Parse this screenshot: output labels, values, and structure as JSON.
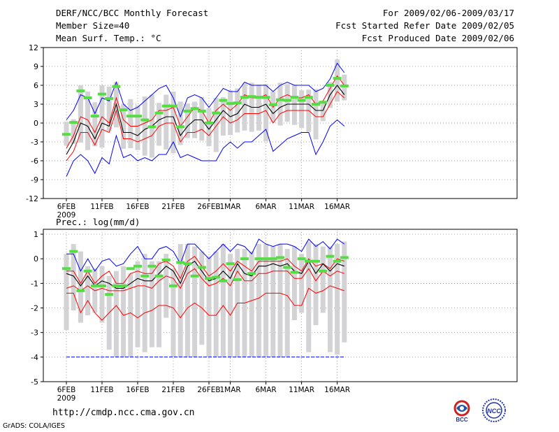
{
  "header": {
    "title": "DERF/NCC/BCC Monthly Forecast",
    "member_size": "Member Size=40",
    "variable": "Mean Surf. Temp.: °C",
    "period": "For 2009/02/06-2009/03/17",
    "started": "Fcst Started Refer Date 2009/02/05",
    "produced": "Fcst Produced Date 2009/02/06"
  },
  "footer": {
    "url": "http://cmdp.ncc.cma.gov.cn",
    "credit": "GrADS: COLA/IGES",
    "logo_left": "BCC",
    "logo_right": "NCC"
  },
  "colors": {
    "max_min": "#0000ff",
    "band": "#ff0000",
    "mean": "#000000",
    "bar": "#d3d3d6",
    "obs": "#55dd44",
    "grid": "#888888"
  },
  "chart_data": [
    {
      "type": "line",
      "title": "Mean Surf. Temp.: °C",
      "ylabel": "Mean Surf. Temp.: °C",
      "xlabel": "",
      "ylim": [
        -12,
        12
      ],
      "yticks": [
        -12,
        -9,
        -6,
        -3,
        0,
        3,
        6,
        9,
        12
      ],
      "x_tick_labels": [
        {
          "day": 0,
          "label": "6FEB"
        },
        {
          "day": 5,
          "label": "11FEB"
        },
        {
          "day": 10,
          "label": "16FEB"
        },
        {
          "day": 15,
          "label": "21FEB"
        },
        {
          "day": 20,
          "label": "26FEB"
        },
        {
          "day": 23,
          "label": "1MAR"
        },
        {
          "day": 28,
          "label": "6MAR"
        },
        {
          "day": 33,
          "label": "11MAR"
        },
        {
          "day": 38,
          "label": "16MAR"
        }
      ],
      "year_label": "2009",
      "days": 40,
      "series": [
        {
          "name": "max",
          "values": [
            0.5,
            2,
            4.5,
            4,
            1.5,
            4,
            3.5,
            6.5,
            3,
            2,
            2.5,
            3.5,
            4.5,
            5.5,
            6,
            4,
            1,
            4,
            4.5,
            4,
            2.5,
            4,
            5.5,
            5,
            5,
            6.5,
            6,
            6,
            6,
            5,
            6,
            6.5,
            6,
            6,
            6,
            5,
            5.5,
            7,
            9.5,
            8
          ]
        },
        {
          "name": "upper",
          "values": [
            -4,
            -2,
            1,
            0.5,
            -1.5,
            1,
            0,
            4,
            0.5,
            -0.5,
            -0.5,
            0,
            0.5,
            2,
            2,
            2.5,
            -0.5,
            1,
            2.5,
            2,
            0,
            2,
            3,
            2,
            3,
            4.5,
            4,
            4,
            4.5,
            2.5,
            4,
            4.5,
            4,
            4,
            4.5,
            3,
            3.5,
            5.5,
            7.5,
            6
          ]
        },
        {
          "name": "mean",
          "values": [
            -5,
            -3,
            0,
            -0.5,
            -2.5,
            0,
            -0.5,
            3,
            -1.5,
            -1.5,
            -2,
            -1,
            -0.5,
            0.5,
            1,
            1,
            -2,
            -0.5,
            0.5,
            0.5,
            -1,
            0.5,
            2,
            1,
            1.5,
            3,
            2.5,
            2.5,
            3,
            1.5,
            2.5,
            3,
            3,
            3,
            3,
            2,
            2,
            4.5,
            6,
            4.5
          ]
        },
        {
          "name": "lower",
          "values": [
            -6,
            -4.5,
            -1.5,
            -1.5,
            -3.5,
            -1,
            -1.5,
            2,
            -2.5,
            -2.5,
            -3,
            -2.5,
            -2,
            -0.5,
            0,
            0,
            -3,
            -1.5,
            -1.5,
            -1,
            -2,
            -0.5,
            1,
            0,
            0.5,
            1.5,
            1.5,
            1.5,
            2,
            0,
            1.5,
            2,
            2,
            2,
            2,
            1,
            1,
            3,
            5,
            4
          ]
        },
        {
          "name": "min",
          "values": [
            -8.5,
            -6,
            -5,
            -6,
            -8,
            -5.5,
            -6.5,
            -2,
            -5.5,
            -5,
            -6,
            -5.5,
            -6,
            -5,
            -5,
            -3,
            -5.5,
            -5,
            -5.5,
            -6,
            -6,
            -6,
            -4,
            -3,
            -4,
            -3,
            -3,
            -2,
            -1,
            -4.5,
            -3.5,
            -2.5,
            -2,
            -1.5,
            -1.5,
            -5,
            -3,
            -0.5,
            0.5,
            -0.5
          ]
        },
        {
          "name": "observed",
          "values": [
            -1.8,
            0.1,
            5.1,
            4,
            1.1,
            4.6,
            3.9,
            5.8,
            2.1,
            1.1,
            1.1,
            0.5,
            -0.6,
            1.6,
            2.7,
            2.7,
            -0.6,
            1.9,
            2.3,
            1.9,
            0,
            1.6,
            3.6,
            3.1,
            3.2,
            4.1,
            4.2,
            4.1,
            4.1,
            2.9,
            3.7,
            3.6,
            4.1,
            3.6,
            4.1,
            3,
            3.3,
            6,
            7.1,
            5.9
          ]
        },
        {
          "name": "bar_top",
          "values": [
            0.2,
            0.6,
            6,
            5,
            3.3,
            6,
            5.8,
            6.5,
            3,
            3.8,
            2.8,
            4.2,
            4.5,
            3.2,
            4.5,
            5,
            3.4,
            3.1,
            3.4,
            4.1,
            2.4,
            4,
            4.1,
            5.2,
            5.5,
            6.3,
            6.4,
            6.1,
            6.2,
            5,
            6.4,
            6.2,
            6.1,
            5.2,
            5.3,
            5.4,
            3.6,
            6.5,
            10.1,
            7.7
          ]
        },
        {
          "name": "bar_bottom",
          "values": [
            -3.6,
            -3.3,
            -3.1,
            -4.3,
            -3.7,
            -3.9,
            -1.3,
            -0.7,
            -4.1,
            -4,
            -4.3,
            -5.2,
            -5.5,
            -3.6,
            -4.2,
            -4.8,
            -3.5,
            -2.4,
            -2.4,
            -2.8,
            -3.7,
            -4.6,
            -2,
            -1.9,
            -1.5,
            -1.2,
            -1.4,
            -1.2,
            -2.9,
            0.1,
            -0.4,
            0.2,
            -0.3,
            -0.8,
            -1.4,
            -2.6,
            0.3,
            2.4,
            3.4,
            3.6
          ]
        }
      ]
    },
    {
      "type": "line",
      "title": "Prec.: log(mm/d)",
      "ylabel": "Prec.: log(mm/d)",
      "xlabel": "",
      "ylim": [
        -5,
        1.2
      ],
      "yticks": [
        -5,
        -4,
        -3,
        -2,
        -1,
        0,
        1
      ],
      "x_tick_labels": [
        {
          "day": 0,
          "label": "6FEB"
        },
        {
          "day": 5,
          "label": "11FEB"
        },
        {
          "day": 10,
          "label": "16FEB"
        },
        {
          "day": 15,
          "label": "21FEB"
        },
        {
          "day": 20,
          "label": "26FEB"
        },
        {
          "day": 23,
          "label": "1MAR"
        },
        {
          "day": 28,
          "label": "6MAR"
        },
        {
          "day": 33,
          "label": "11MAR"
        },
        {
          "day": 38,
          "label": "16MAR"
        }
      ],
      "year_label": "2009",
      "days": 40,
      "series": [
        {
          "name": "max",
          "values": [
            0.2,
            0.2,
            -0.5,
            0,
            -0.5,
            -0.1,
            0,
            -0.3,
            -0.2,
            0.2,
            0.5,
            0,
            0,
            0.4,
            0.5,
            0.3,
            -0.2,
            0.6,
            0.6,
            0.3,
            0,
            0.3,
            0.6,
            0.3,
            0.6,
            0.5,
            0.2,
            0.8,
            0.6,
            0.5,
            0.6,
            0.6,
            0.5,
            0.3,
            0.8,
            0.5,
            0.7,
            0.4,
            0.8,
            0.6
          ]
        },
        {
          "name": "upper",
          "values": [
            -0.5,
            -0.5,
            -1,
            -0.5,
            -1,
            -0.7,
            -0.5,
            -1,
            -1,
            -0.6,
            -0.5,
            -0.6,
            -0.6,
            -0.2,
            -0.1,
            -0.3,
            -0.8,
            -0.1,
            0.1,
            -0.3,
            -0.7,
            -0.5,
            -0.2,
            -0.5,
            -0.1,
            -0.3,
            -0.5,
            -0.1,
            -0.1,
            -0.1,
            -0.1,
            0,
            -0.3,
            -0.5,
            0,
            -0.3,
            -0.2,
            -0.4,
            0,
            -0.1
          ]
        },
        {
          "name": "mean",
          "values": [
            -0.6,
            -0.7,
            -1.1,
            -0.7,
            -1.1,
            -0.9,
            -1,
            -1.2,
            -1.2,
            -1,
            -0.8,
            -0.9,
            -0.9,
            -0.6,
            -0.3,
            -0.5,
            -1,
            -0.3,
            -0.1,
            -0.5,
            -0.9,
            -0.8,
            -0.5,
            -0.8,
            -0.2,
            -0.6,
            -0.7,
            -0.3,
            -0.3,
            -0.2,
            -0.3,
            -0.2,
            -0.5,
            -0.6,
            -0.1,
            -0.6,
            -0.2,
            -0.5,
            -0.2,
            -0.3
          ]
        },
        {
          "name": "lower",
          "values": [
            -1.2,
            -1.1,
            -1.3,
            -1.1,
            -1.3,
            -1.2,
            -1.3,
            -1.3,
            -1.3,
            -1.2,
            -1.1,
            -1.1,
            -1.2,
            -0.9,
            -0.7,
            -0.8,
            -1.2,
            -0.6,
            -0.4,
            -0.8,
            -1.1,
            -1,
            -0.8,
            -1.1,
            -0.5,
            -0.9,
            -0.9,
            -0.6,
            -0.6,
            -0.5,
            -0.5,
            -0.5,
            -0.8,
            -0.8,
            -0.4,
            -0.9,
            -0.5,
            -0.7,
            -0.5,
            -0.6
          ]
        },
        {
          "name": "lowest",
          "values": [
            -1.4,
            -1.4,
            -2.2,
            -1.7,
            -2.2,
            -2.5,
            -2.2,
            -1.9,
            -2.3,
            -2.2,
            -2.4,
            -2.2,
            -2.1,
            -1.9,
            -1.9,
            -2,
            -2.4,
            -2,
            -1.8,
            -2,
            -2.3,
            -2.3,
            -1.9,
            -2.3,
            -1.8,
            -1.8,
            -1.7,
            -1.6,
            -1.4,
            -1.4,
            -1.4,
            -1.5,
            -1.9,
            -1.9,
            -1.2,
            -1.4,
            -1.3,
            -1.1,
            -1.2,
            -1.3
          ]
        },
        {
          "name": "min",
          "values": [
            -4,
            -4,
            -4,
            -4,
            -4,
            -4,
            -4,
            -4,
            -4,
            -4,
            -4,
            -4,
            -4,
            -4,
            -4,
            -4,
            -4,
            -4,
            -4,
            -4,
            -4,
            -4,
            -4,
            -4,
            -4,
            -4,
            -4,
            -4,
            -4,
            -4,
            -4,
            -4,
            -4,
            -4,
            -4,
            -4,
            -4,
            -4,
            -4,
            -4
          ]
        },
        {
          "name": "observed",
          "values": [
            -0.4,
            0.3,
            -1.3,
            -0.5,
            -1.1,
            -1.1,
            -1.45,
            -1.1,
            -1.1,
            -0.4,
            -0.3,
            -0.7,
            -0.3,
            -0.7,
            -0.05,
            -1.1,
            -0.15,
            -0.2,
            -0.7,
            -0.35,
            -0.8,
            -0.75,
            -0.9,
            -0.2,
            -0.85,
            0,
            -0.6,
            0,
            0,
            0,
            0.05,
            -0.35,
            -0.55,
            0,
            -0.1,
            -0.1,
            -0.5,
            0.1,
            -0.1,
            0.05
          ]
        },
        {
          "name": "bar_top",
          "values": [
            0.2,
            0.6,
            0.3,
            -0.3,
            -0.4,
            -0.3,
            -0.7,
            -0.5,
            -0.3,
            -0.6,
            -0.1,
            0.2,
            -0.1,
            -0.1,
            0.2,
            -0.4,
            0.6,
            0.6,
            0.5,
            0.3,
            0.1,
            0.3,
            0.6,
            0.2,
            0.4,
            0.4,
            0.3,
            0.6,
            0.6,
            0.5,
            0.6,
            0.4,
            0.5,
            0.2,
            0.7,
            0.6,
            0.5,
            0.5,
            0.6,
            0.7
          ]
        },
        {
          "name": "bar_bottom",
          "values": [
            -2.9,
            -2.1,
            -2.6,
            -2.3,
            -2.2,
            -2.6,
            -3.7,
            -4,
            -4,
            -4,
            -3.6,
            -3.8,
            -3.6,
            -3.6,
            -2.4,
            -4,
            -4,
            -4,
            -4,
            -3.5,
            -4,
            -4,
            -4,
            -4,
            -4,
            -4,
            -4,
            -4,
            -4,
            -4,
            -4,
            -4,
            -2.5,
            -2.2,
            -3.8,
            -2.7,
            -2.2,
            -3.8,
            -3.9,
            -3.4
          ]
        }
      ]
    }
  ]
}
